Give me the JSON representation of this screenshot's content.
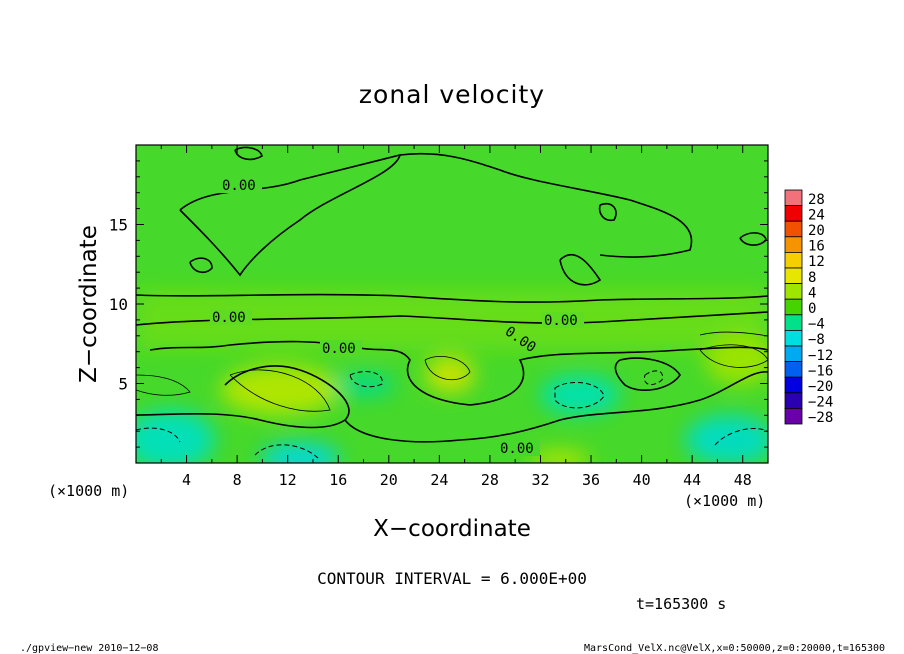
{
  "chart_data": {
    "type": "heatmap",
    "title": "zonal velocity",
    "xlabel": "X−coordinate",
    "ylabel": "Z−coordinate",
    "x_unit": "(×1000 m)",
    "y_unit": "(×1000 m)",
    "xlim": [
      0,
      50
    ],
    "ylim": [
      0,
      20
    ],
    "x_ticks": [
      "4",
      "8",
      "12",
      "16",
      "20",
      "24",
      "28",
      "32",
      "36",
      "40",
      "44",
      "48"
    ],
    "y_ticks": [
      "5",
      "10",
      "15"
    ],
    "colorbar": {
      "levels": [
        "28",
        "24",
        "20",
        "16",
        "12",
        "8",
        "4",
        "0",
        "−4",
        "−8",
        "−12",
        "−16",
        "−20",
        "−24",
        "−28"
      ],
      "colors": [
        "#f2717a",
        "#f00000",
        "#f25200",
        "#f59300",
        "#f5cf00",
        "#e6e600",
        "#9ee600",
        "#45d400",
        "#00e18a",
        "#00dfe0",
        "#00aaf0",
        "#0060f0",
        "#0000e0",
        "#2a00b0",
        "#6a00a8"
      ]
    },
    "contour_labels": [
      "0.00",
      "0.00",
      "0.00",
      "0.00",
      "0.00",
      "0.00"
    ],
    "contour_interval": "CONTOUR INTERVAL = 6.000E+00",
    "time": "t=165300 s"
  },
  "footer": {
    "left": "./gpview−new   2010−12−08",
    "right": "MarsCond_VelX.nc@VelX,x=0:50000,z=0:20000,t=165300"
  }
}
